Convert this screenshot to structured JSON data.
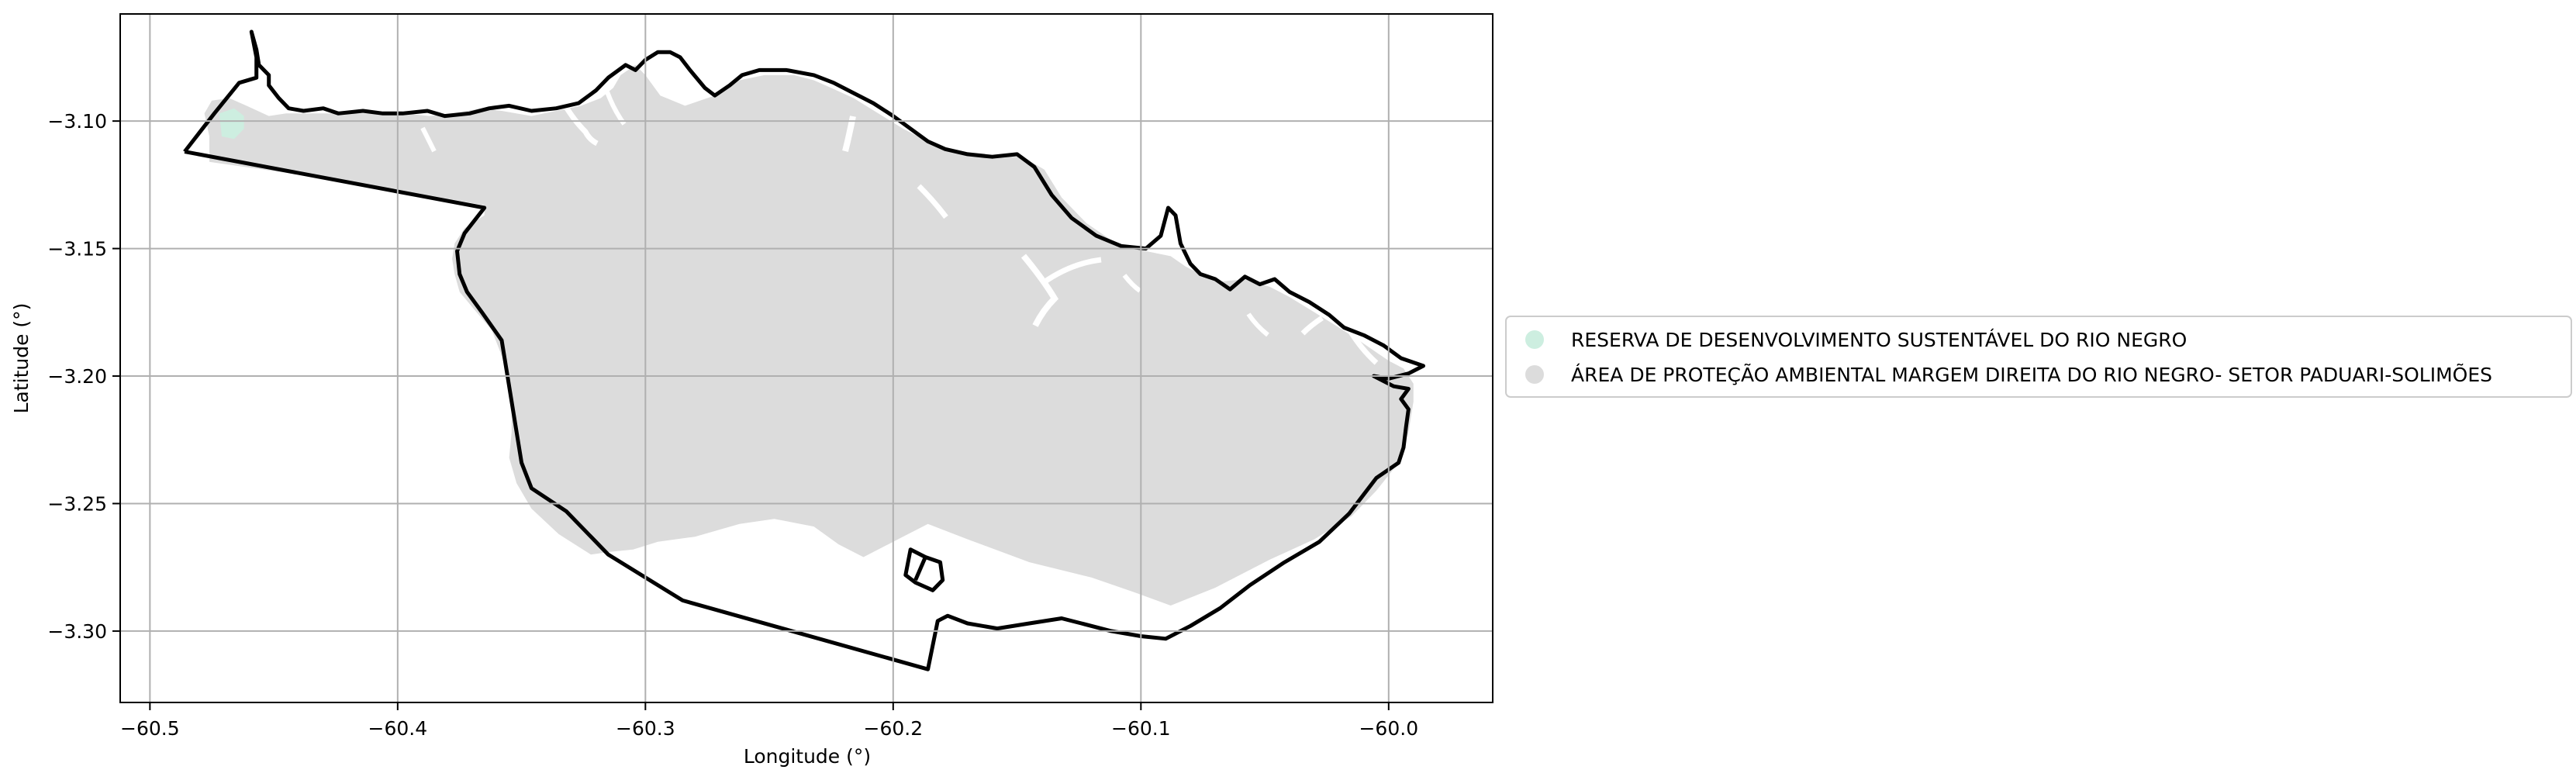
{
  "chart_data": {
    "type": "map",
    "xlabel": "Longitude (°)",
    "ylabel": "Latitude (°)",
    "xlim": [
      -60.512,
      -59.958
    ],
    "ylim": [
      -3.328,
      -3.058
    ],
    "x_ticks": [
      -60.5,
      -60.4,
      -60.3,
      -60.2,
      -60.1,
      -60.0
    ],
    "x_tick_labels": [
      "−60.5",
      "−60.4",
      "−60.3",
      "−60.2",
      "−60.1",
      "−60.0"
    ],
    "y_ticks": [
      -3.1,
      -3.15,
      -3.2,
      -3.25,
      -3.3
    ],
    "y_tick_labels": [
      "−3.10",
      "−3.15",
      "−3.20",
      "−3.25",
      "−3.30"
    ],
    "grid": true,
    "legend_position": "right, outside plot",
    "legend": [
      {
        "label": "RESERVA DE DESENVOLVIMENTO SUSTENTÁVEL DO RIO NEGRO",
        "color": "#cdeee0"
      },
      {
        "label": "ÁREA DE PROTEÇÃO AMBIENTAL MARGEM DIREITA DO RIO NEGRO- SETOR PADUARI-SOLIMÕES",
        "color": "#dcdcdc"
      }
    ],
    "boundary_color": "#000000",
    "background_color": "#ffffff",
    "polygons": {
      "apa_fill": [
        [
          -60.478,
          -3.097
        ],
        [
          -60.475,
          -3.092
        ],
        [
          -60.468,
          -3.091
        ],
        [
          -60.461,
          -3.094
        ],
        [
          -60.452,
          -3.098
        ],
        [
          -60.445,
          -3.097
        ],
        [
          -60.43,
          -3.097
        ],
        [
          -60.41,
          -3.097
        ],
        [
          -60.398,
          -3.097
        ],
        [
          -60.387,
          -3.098
        ],
        [
          -60.378,
          -3.097
        ],
        [
          -60.366,
          -3.095
        ],
        [
          -60.358,
          -3.096
        ],
        [
          -60.346,
          -3.098
        ],
        [
          -60.336,
          -3.096
        ],
        [
          -60.326,
          -3.094
        ],
        [
          -60.318,
          -3.091
        ],
        [
          -60.313,
          -3.087
        ],
        [
          -60.31,
          -3.082
        ],
        [
          -60.304,
          -3.078
        ],
        [
          -60.3,
          -3.082
        ],
        [
          -60.294,
          -3.09
        ],
        [
          -60.284,
          -3.094
        ],
        [
          -60.272,
          -3.09
        ],
        [
          -60.262,
          -3.084
        ],
        [
          -60.252,
          -3.082
        ],
        [
          -60.24,
          -3.082
        ],
        [
          -60.232,
          -3.084
        ],
        [
          -60.225,
          -3.087
        ],
        [
          -60.216,
          -3.091
        ],
        [
          -60.206,
          -3.097
        ],
        [
          -60.196,
          -3.103
        ],
        [
          -60.186,
          -3.108
        ],
        [
          -60.178,
          -3.111
        ],
        [
          -60.17,
          -3.113
        ],
        [
          -60.16,
          -3.114
        ],
        [
          -60.148,
          -3.114
        ],
        [
          -60.139,
          -3.119
        ],
        [
          -60.132,
          -3.13
        ],
        [
          -60.122,
          -3.14
        ],
        [
          -60.11,
          -3.148
        ],
        [
          -60.098,
          -3.151
        ],
        [
          -60.088,
          -3.153
        ],
        [
          -60.082,
          -3.157
        ],
        [
          -60.076,
          -3.16
        ],
        [
          -60.068,
          -3.163
        ],
        [
          -60.058,
          -3.162
        ],
        [
          -60.048,
          -3.165
        ],
        [
          -60.04,
          -3.169
        ],
        [
          -60.03,
          -3.175
        ],
        [
          -60.02,
          -3.181
        ],
        [
          -60.012,
          -3.186
        ],
        [
          -60.006,
          -3.19
        ],
        [
          -60.0,
          -3.194
        ],
        [
          -59.994,
          -3.197
        ],
        [
          -59.99,
          -3.203
        ],
        [
          -59.99,
          -3.21
        ],
        [
          -59.992,
          -3.222
        ],
        [
          -59.996,
          -3.234
        ],
        [
          -60.005,
          -3.245
        ],
        [
          -60.015,
          -3.255
        ],
        [
          -60.03,
          -3.264
        ],
        [
          -60.048,
          -3.272
        ],
        [
          -60.07,
          -3.283
        ],
        [
          -60.088,
          -3.29
        ],
        [
          -60.102,
          -3.285
        ],
        [
          -60.12,
          -3.279
        ],
        [
          -60.145,
          -3.273
        ],
        [
          -60.17,
          -3.264
        ],
        [
          -60.186,
          -3.258
        ],
        [
          -60.2,
          -3.265
        ],
        [
          -60.212,
          -3.271
        ],
        [
          -60.222,
          -3.266
        ],
        [
          -60.232,
          -3.259
        ],
        [
          -60.248,
          -3.256
        ],
        [
          -60.262,
          -3.258
        ],
        [
          -60.28,
          -3.263
        ],
        [
          -60.295,
          -3.265
        ],
        [
          -60.305,
          -3.268
        ],
        [
          -60.315,
          -3.269
        ],
        [
          -60.322,
          -3.27
        ],
        [
          -60.335,
          -3.262
        ],
        [
          -60.346,
          -3.252
        ],
        [
          -60.352,
          -3.242
        ],
        [
          -60.355,
          -3.232
        ],
        [
          -60.354,
          -3.222
        ],
        [
          -60.354,
          -3.212
        ],
        [
          -60.355,
          -3.202
        ],
        [
          -60.358,
          -3.192
        ],
        [
          -60.362,
          -3.182
        ],
        [
          -60.369,
          -3.174
        ],
        [
          -60.375,
          -3.167
        ],
        [
          -60.377,
          -3.16
        ],
        [
          -60.378,
          -3.154
        ],
        [
          -60.377,
          -3.148
        ],
        [
          -60.373,
          -3.142
        ],
        [
          -60.365,
          -3.137
        ],
        [
          -60.365,
          -3.133
        ],
        [
          -60.4,
          -3.127
        ],
        [
          -60.44,
          -3.121
        ],
        [
          -60.476,
          -3.116
        ],
        [
          -60.476,
          -3.106
        ]
      ],
      "rds_fill": [
        [
          -60.472,
          -3.097
        ],
        [
          -60.466,
          -3.095
        ],
        [
          -60.462,
          -3.098
        ],
        [
          -60.462,
          -3.103
        ],
        [
          -60.466,
          -3.107
        ],
        [
          -60.471,
          -3.106
        ]
      ],
      "outer_boundary": [
        [
          -60.486,
          -3.112
        ],
        [
          -60.474,
          -3.097
        ],
        [
          -60.464,
          -3.085
        ],
        [
          -60.457,
          -3.083
        ],
        [
          -60.457,
          -3.075
        ],
        [
          -60.459,
          -3.065
        ],
        [
          -60.457,
          -3.072
        ],
        [
          -60.456,
          -3.078
        ],
        [
          -60.452,
          -3.082
        ],
        [
          -60.452,
          -3.086
        ],
        [
          -60.448,
          -3.091
        ],
        [
          -60.444,
          -3.095
        ],
        [
          -60.438,
          -3.096
        ],
        [
          -60.43,
          -3.095
        ],
        [
          -60.424,
          -3.097
        ],
        [
          -60.414,
          -3.096
        ],
        [
          -60.406,
          -3.097
        ],
        [
          -60.398,
          -3.097
        ],
        [
          -60.388,
          -3.096
        ],
        [
          -60.381,
          -3.098
        ],
        [
          -60.371,
          -3.097
        ],
        [
          -60.363,
          -3.095
        ],
        [
          -60.355,
          -3.094
        ],
        [
          -60.346,
          -3.096
        ],
        [
          -60.336,
          -3.095
        ],
        [
          -60.327,
          -3.093
        ],
        [
          -60.32,
          -3.088
        ],
        [
          -60.315,
          -3.083
        ],
        [
          -60.308,
          -3.078
        ],
        [
          -60.304,
          -3.08
        ],
        [
          -60.3,
          -3.076
        ],
        [
          -60.295,
          -3.073
        ],
        [
          -60.29,
          -3.073
        ],
        [
          -60.286,
          -3.075
        ],
        [
          -60.282,
          -3.08
        ],
        [
          -60.276,
          -3.087
        ],
        [
          -60.272,
          -3.09
        ],
        [
          -60.266,
          -3.086
        ],
        [
          -60.261,
          -3.082
        ],
        [
          -60.254,
          -3.08
        ],
        [
          -60.243,
          -3.08
        ],
        [
          -60.232,
          -3.082
        ],
        [
          -60.224,
          -3.085
        ],
        [
          -60.216,
          -3.089
        ],
        [
          -60.208,
          -3.093
        ],
        [
          -60.2,
          -3.098
        ],
        [
          -60.193,
          -3.103
        ],
        [
          -60.186,
          -3.108
        ],
        [
          -60.179,
          -3.111
        ],
        [
          -60.17,
          -3.113
        ],
        [
          -60.16,
          -3.114
        ],
        [
          -60.15,
          -3.113
        ],
        [
          -60.143,
          -3.118
        ],
        [
          -60.136,
          -3.129
        ],
        [
          -60.128,
          -3.138
        ],
        [
          -60.118,
          -3.145
        ],
        [
          -60.108,
          -3.149
        ],
        [
          -60.098,
          -3.15
        ],
        [
          -60.092,
          -3.145
        ],
        [
          -60.089,
          -3.134
        ],
        [
          -60.086,
          -3.137
        ],
        [
          -60.084,
          -3.148
        ],
        [
          -60.08,
          -3.156
        ],
        [
          -60.076,
          -3.16
        ],
        [
          -60.07,
          -3.162
        ],
        [
          -60.064,
          -3.166
        ],
        [
          -60.058,
          -3.161
        ],
        [
          -60.052,
          -3.164
        ],
        [
          -60.046,
          -3.162
        ],
        [
          -60.04,
          -3.167
        ],
        [
          -60.032,
          -3.171
        ],
        [
          -60.024,
          -3.176
        ],
        [
          -60.018,
          -3.181
        ],
        [
          -60.01,
          -3.184
        ],
        [
          -60.002,
          -3.188
        ],
        [
          -59.995,
          -3.193
        ],
        [
          -59.986,
          -3.196
        ],
        [
          -59.992,
          -3.199
        ],
        [
          -60.0,
          -3.201
        ],
        [
          -60.006,
          -3.2
        ],
        [
          -59.998,
          -3.204
        ],
        [
          -59.992,
          -3.205
        ],
        [
          -59.995,
          -3.209
        ],
        [
          -59.992,
          -3.213
        ],
        [
          -59.993,
          -3.22
        ],
        [
          -59.994,
          -3.228
        ],
        [
          -59.996,
          -3.234
        ],
        [
          -60.005,
          -3.24
        ],
        [
          -60.016,
          -3.254
        ],
        [
          -60.028,
          -3.265
        ],
        [
          -60.042,
          -3.273
        ],
        [
          -60.056,
          -3.282
        ],
        [
          -60.068,
          -3.291
        ],
        [
          -60.08,
          -3.298
        ],
        [
          -60.09,
          -3.303
        ],
        [
          -60.1,
          -3.302
        ],
        [
          -60.112,
          -3.3
        ],
        [
          -60.124,
          -3.297
        ],
        [
          -60.132,
          -3.295
        ],
        [
          -60.145,
          -3.297
        ],
        [
          -60.158,
          -3.299
        ],
        [
          -60.17,
          -3.297
        ],
        [
          -60.178,
          -3.294
        ],
        [
          -60.182,
          -3.296
        ],
        [
          -60.186,
          -3.315
        ],
        [
          -60.285,
          -3.288
        ],
        [
          -60.315,
          -3.27
        ],
        [
          -60.332,
          -3.253
        ],
        [
          -60.346,
          -3.244
        ],
        [
          -60.35,
          -3.234
        ],
        [
          -60.352,
          -3.222
        ],
        [
          -60.354,
          -3.21
        ],
        [
          -60.356,
          -3.198
        ],
        [
          -60.358,
          -3.186
        ],
        [
          -60.366,
          -3.175
        ],
        [
          -60.372,
          -3.167
        ],
        [
          -60.375,
          -3.16
        ],
        [
          -60.376,
          -3.151
        ],
        [
          -60.373,
          -3.144
        ],
        [
          -60.365,
          -3.134
        ],
        [
          -60.486,
          -3.112
        ]
      ],
      "island": [
        [
          -60.193,
          -3.268
        ],
        [
          -60.187,
          -3.271
        ],
        [
          -60.181,
          -3.273
        ],
        [
          -60.18,
          -3.28
        ],
        [
          -60.184,
          -3.284
        ],
        [
          -60.191,
          -3.281
        ],
        [
          -60.195,
          -3.278
        ]
      ],
      "island_divider": [
        [
          -60.187,
          -3.271
        ],
        [
          -60.191,
          -3.28
        ]
      ]
    }
  }
}
